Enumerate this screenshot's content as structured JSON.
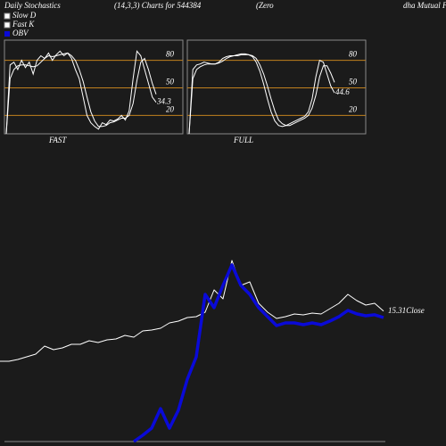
{
  "header": {
    "title": "Daily Stochastics",
    "params": "(14,3,3) Charts for 544384",
    "name_a": "(Zero",
    "name_b": "dha  Mutual F"
  },
  "chart_data": [
    {
      "type": "stochastic",
      "title": "FAST",
      "ylim": [
        0,
        100
      ],
      "yticks": [
        20,
        50,
        80
      ],
      "grid_color": "#c0801e",
      "series": [
        {
          "name": "Slow D",
          "color": "#ffffff",
          "values": [
            0,
            60,
            70,
            74,
            75,
            75,
            74,
            73,
            74,
            78,
            82,
            85,
            84,
            85,
            86,
            87,
            88,
            85,
            80,
            70,
            57,
            40,
            24,
            14,
            8,
            8,
            9,
            12,
            13,
            15,
            17,
            17,
            20,
            33,
            58,
            78,
            82,
            70,
            55,
            43
          ]
        },
        {
          "name": "Fast K",
          "color": "#ffffff",
          "values": [
            0,
            75,
            78,
            70,
            80,
            72,
            78,
            65,
            80,
            85,
            82,
            88,
            80,
            86,
            90,
            85,
            88,
            82,
            70,
            60,
            40,
            20,
            12,
            8,
            5,
            12,
            10,
            15,
            14,
            16,
            20,
            15,
            25,
            60,
            90,
            85,
            70,
            55,
            40,
            34.3
          ]
        }
      ]
    },
    {
      "type": "stochastic",
      "title": "FULL",
      "ylim": [
        0,
        100
      ],
      "yticks": [
        20,
        50,
        80
      ],
      "grid_color": "#c0801e",
      "series": [
        {
          "color": "#ffffff",
          "values": [
            0,
            60,
            70,
            73,
            75,
            76,
            76,
            76,
            77,
            79,
            82,
            84,
            85,
            85,
            86,
            86,
            86,
            85,
            82,
            75,
            65,
            52,
            38,
            25,
            15,
            11,
            9,
            9,
            11,
            13,
            15,
            17,
            20,
            28,
            42,
            62,
            74,
            74,
            66,
            56
          ]
        },
        {
          "color": "#ffffff",
          "values": [
            0,
            70,
            75,
            76,
            78,
            77,
            76,
            76,
            78,
            82,
            84,
            85,
            85,
            86,
            87,
            87,
            86,
            84,
            78,
            68,
            54,
            38,
            24,
            14,
            9,
            8,
            9,
            11,
            13,
            15,
            17,
            19,
            24,
            38,
            62,
            80,
            78,
            65,
            52,
            44.6
          ]
        }
      ]
    },
    {
      "type": "line",
      "ylim": [
        8,
        23.25
      ],
      "y2lim": [
        0,
        100
      ],
      "series": [
        {
          "name": "Close",
          "color": "#ffffff",
          "values": [
            12.5,
            12.5,
            12.6,
            12.75,
            12.9,
            13.35,
            13.15,
            13.25,
            13.45,
            13.45,
            13.65,
            13.55,
            13.7,
            13.75,
            13.95,
            13.85,
            14.2,
            14.25,
            14.35,
            14.65,
            14.75,
            14.95,
            15.0,
            15.25,
            16.5,
            16.0,
            18.15,
            16.75,
            16.95,
            15.75,
            15.25,
            14.9,
            15.0,
            15.15,
            15.1,
            15.2,
            15.15,
            15.45,
            15.75,
            16.25,
            15.9,
            15.65,
            15.75,
            15.31
          ]
        },
        {
          "name": "OBV",
          "color": "#0a0ad8",
          "axis": "y2",
          "values": [
            null,
            null,
            null,
            null,
            null,
            null,
            null,
            null,
            null,
            null,
            null,
            null,
            null,
            null,
            null,
            0,
            3.4,
            7.3,
            18,
            7.3,
            17.1,
            34.1,
            46.3,
            80.5,
            73.2,
            85.4,
            96.6,
            85.4,
            80.5,
            73.2,
            68.3,
            63.4,
            64.9,
            64.9,
            63.9,
            64.9,
            63.9,
            65.9,
            68.3,
            71.7,
            69.8,
            68.8,
            69.3,
            67.8
          ]
        }
      ]
    }
  ]
}
